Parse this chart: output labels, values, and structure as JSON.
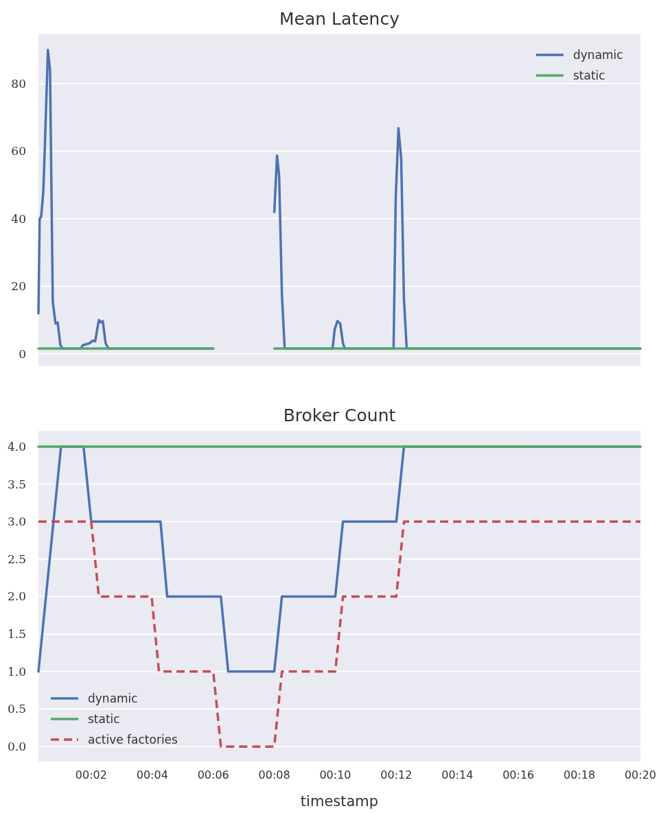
{
  "chart_data": [
    {
      "type": "line",
      "title": "Mean Latency",
      "xlim": [
        0.27,
        20
      ],
      "ylim": [
        -3.5,
        94.6
      ],
      "yticks": [
        0,
        20,
        40,
        60,
        80
      ],
      "tick_labels": "y",
      "grid": "y",
      "legend": "top right",
      "series": [
        {
          "name": "dynamic",
          "color": "#4c72b0",
          "x": [
            0.27,
            0.31,
            0.36,
            0.43,
            0.49,
            0.58,
            0.65,
            0.74,
            0.83,
            0.9,
            0.99,
            1.06,
            1.66,
            1.73,
            1.82,
            1.96,
            2.04,
            2.13,
            2.25,
            2.31,
            2.38,
            2.47,
            2.56,
            6.0,
            7.0,
            8.0,
            8.09,
            8.16,
            8.25,
            8.34,
            9.91,
            9.98,
            10.07,
            10.16,
            10.25,
            10.31,
            11.91,
            11.98,
            12.07,
            12.16,
            12.25,
            12.34,
            20
          ],
          "values": [
            12,
            40,
            40.6,
            48,
            64,
            90,
            84,
            15.4,
            9,
            9.3,
            2.6,
            1.6,
            1.6,
            2.6,
            2.8,
            3.2,
            3.9,
            3.7,
            10,
            9.3,
            9.7,
            3.2,
            1.6,
            1.6,
            null,
            42,
            58.7,
            52.6,
            17.5,
            1.6,
            1.6,
            7.3,
            9.7,
            9,
            3.2,
            1.6,
            1.6,
            46,
            66.8,
            57.7,
            16.2,
            1.6,
            1.6
          ]
        },
        {
          "name": "static",
          "color": "#55a868",
          "x": [
            0.27,
            6.0,
            7.0,
            8.0,
            20
          ],
          "values": [
            1.6,
            1.6,
            null,
            1.6,
            1.6
          ]
        }
      ]
    },
    {
      "type": "line",
      "title": "Broker Count",
      "xlabel": "timestamp",
      "xlim": [
        0.27,
        20
      ],
      "ylim": [
        -0.2,
        4.21
      ],
      "yticks": [
        {
          "value": 0,
          "label": "0.0"
        },
        0.5,
        {
          "value": 1,
          "label": "1.0"
        },
        1.5,
        {
          "value": 2,
          "label": "2.0"
        },
        2.5,
        {
          "value": 3,
          "label": "3.0"
        },
        3.5,
        {
          "value": 4,
          "label": "4.0"
        }
      ],
      "xticks": [
        {
          "value": 2,
          "label": "00:02"
        },
        {
          "value": 4,
          "label": "00:04"
        },
        {
          "value": 6,
          "label": "00:06"
        },
        {
          "value": 8,
          "label": "00:08"
        },
        {
          "value": 10,
          "label": "00:10"
        },
        {
          "value": 12,
          "label": "00:12"
        },
        {
          "value": 14,
          "label": "00:14"
        },
        {
          "value": 16,
          "label": "00:16"
        },
        {
          "value": 18,
          "label": "00:18"
        },
        {
          "value": 20,
          "label": "00:20"
        }
      ],
      "grid": "y",
      "legend": "bottom left",
      "series": [
        {
          "name": "dynamic",
          "color": "#4c72b0",
          "x": [
            0.27,
            1.01,
            1.75,
            2.0,
            4.27,
            4.49,
            6.25,
            6.49,
            8.0,
            8.25,
            10.0,
            10.25,
            12.0,
            12.25,
            20
          ],
          "values": [
            1,
            4,
            4,
            3,
            3,
            2,
            2,
            1,
            1,
            2,
            2,
            3,
            3,
            4,
            4
          ]
        },
        {
          "name": "static",
          "color": "#55a868",
          "x": [
            0.27,
            20
          ],
          "values": [
            4,
            4
          ]
        },
        {
          "name": "active factories",
          "color": "#c44e52",
          "line_style": "dashed",
          "x": [
            0.27,
            2.0,
            2.25,
            3.98,
            4.22,
            6.0,
            6.25,
            8.0,
            8.25,
            10.0,
            10.25,
            12.0,
            12.25,
            20
          ],
          "values": [
            3,
            3,
            2,
            2,
            1,
            1,
            0,
            0,
            1,
            1,
            2,
            2,
            3,
            3
          ]
        }
      ]
    }
  ]
}
